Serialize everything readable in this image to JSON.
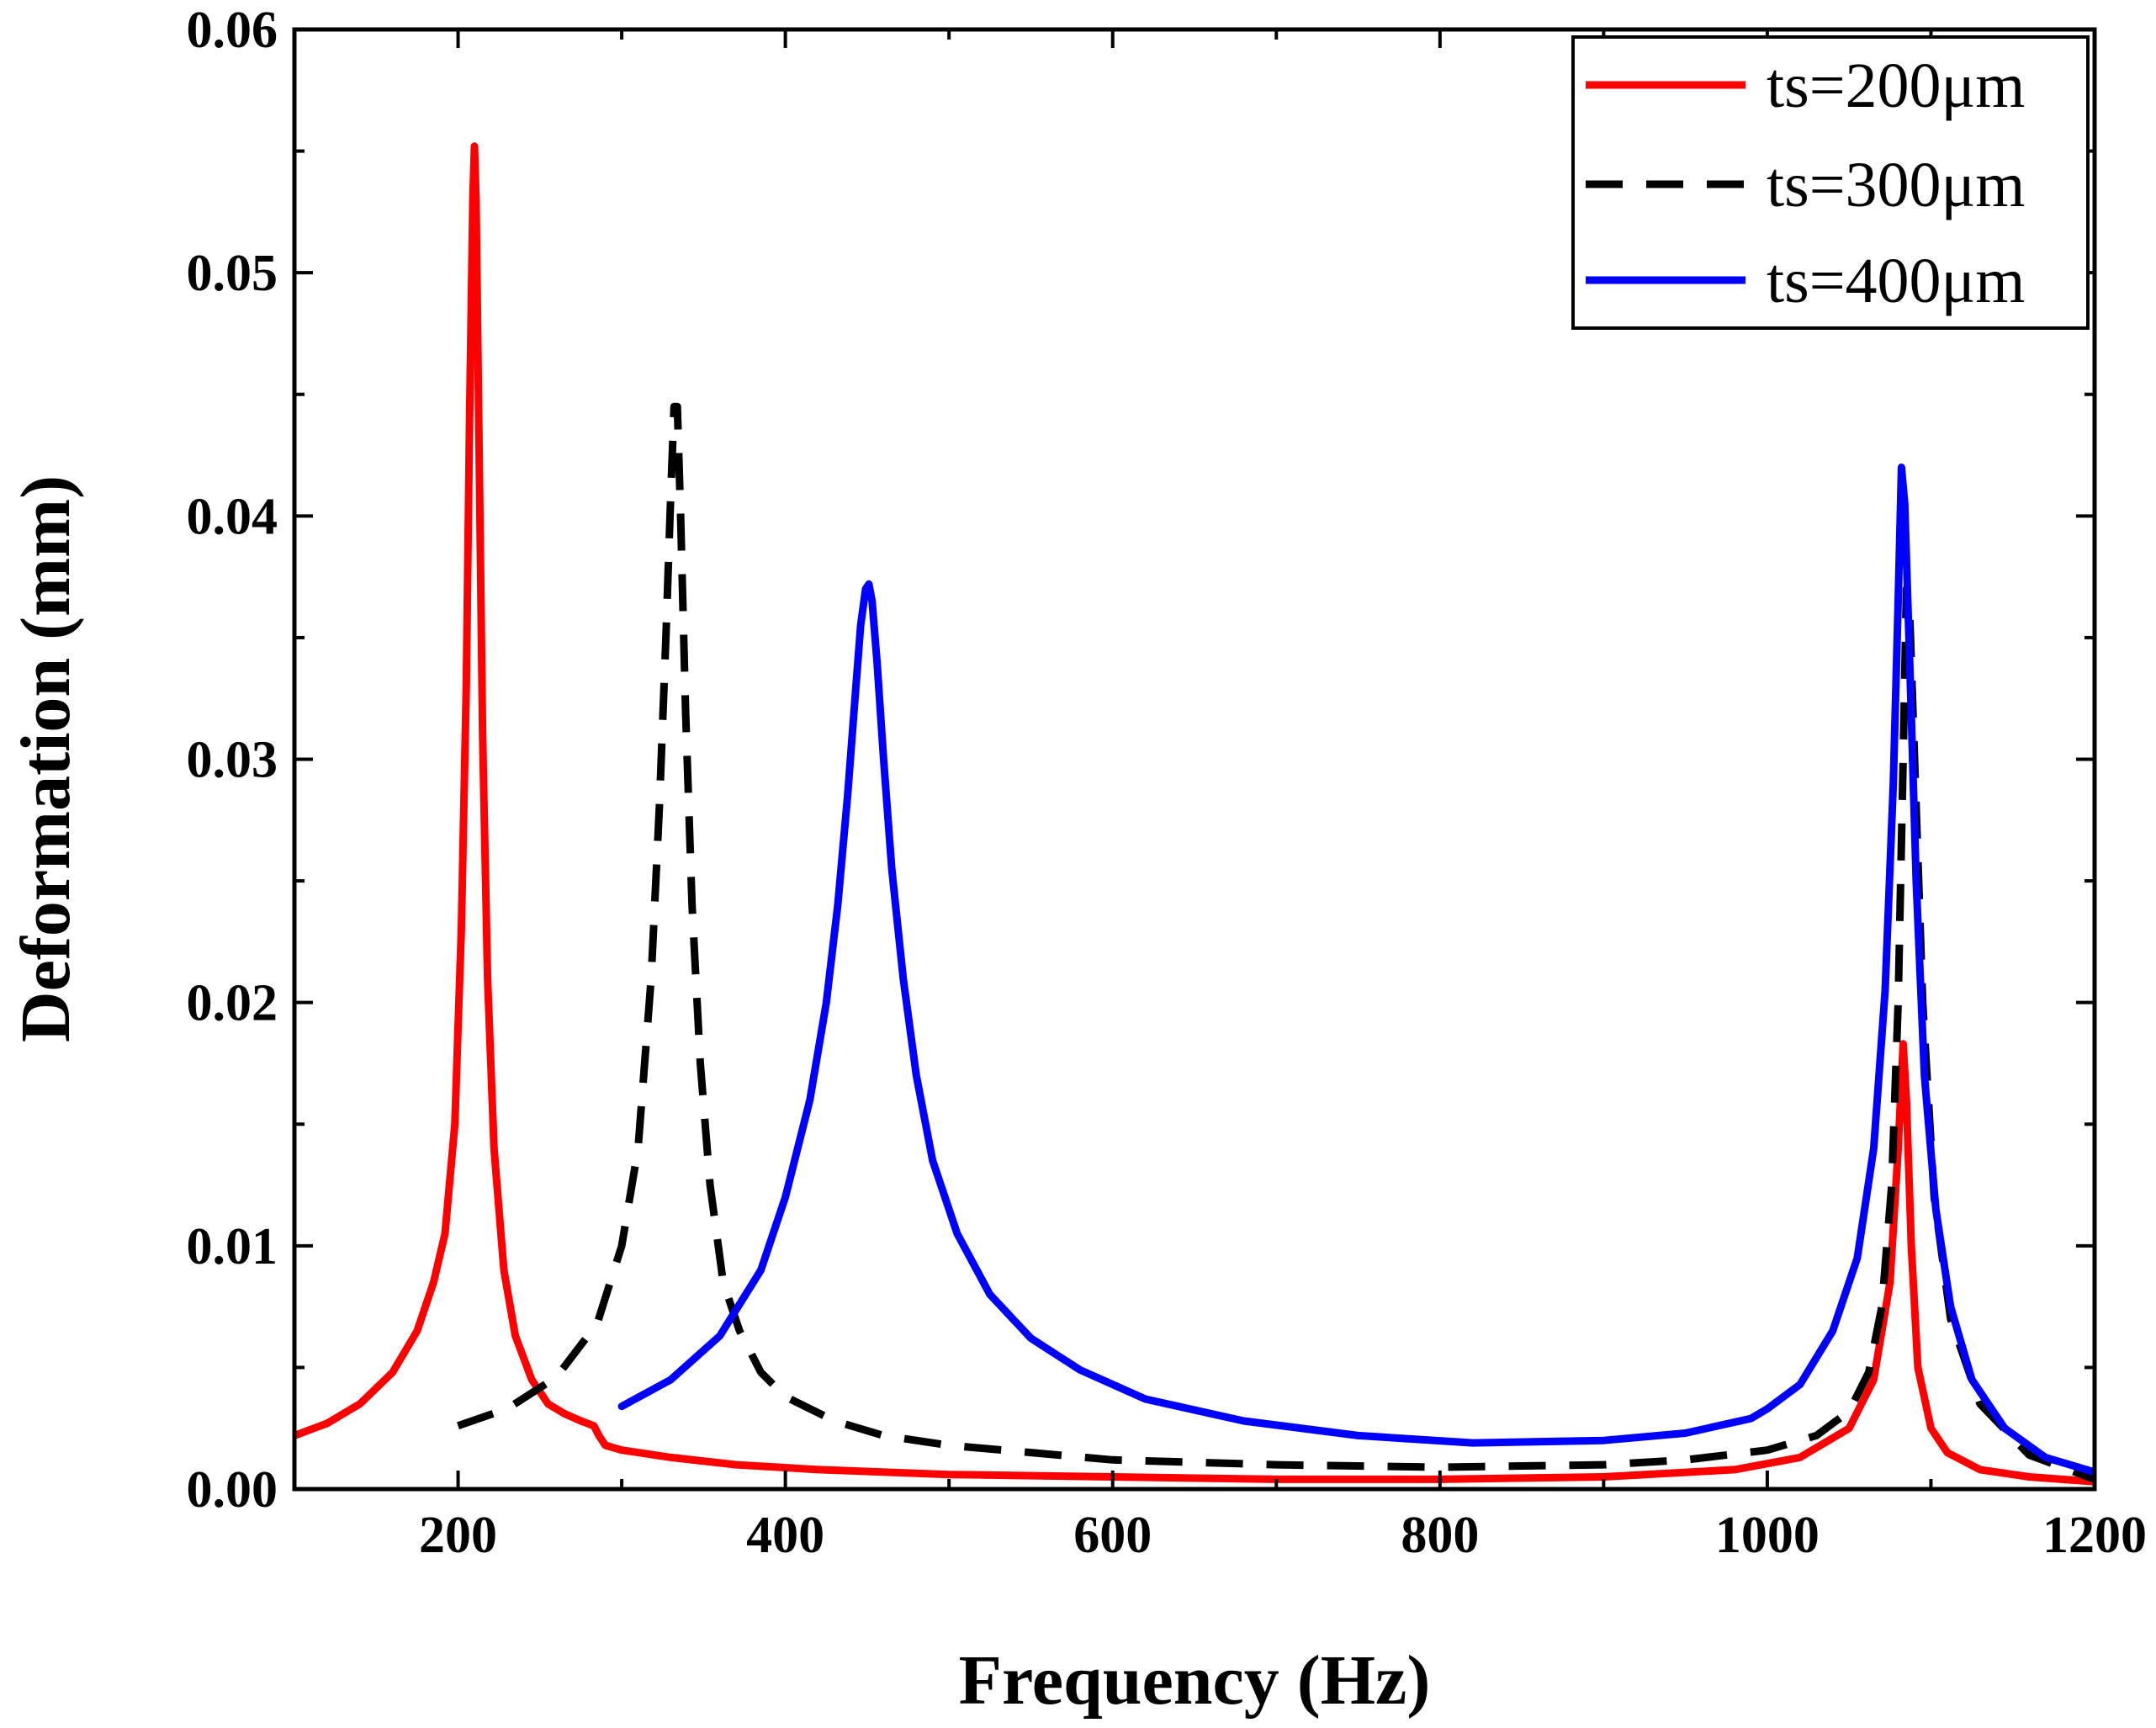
{
  "chart_data": {
    "type": "line",
    "title": "",
    "xlabel": "Frequency (Hz)",
    "ylabel": "Deformation (mm)",
    "xlim": [
      100,
      1200
    ],
    "ylim": [
      0,
      0.06
    ],
    "xticks": [
      200,
      400,
      600,
      800,
      1000,
      1200
    ],
    "xtick_labels": [
      "200",
      "400",
      "600",
      "800",
      "1000",
      "1200"
    ],
    "yticks": [
      0,
      0.01,
      0.02,
      0.03,
      0.04,
      0.05,
      0.06
    ],
    "ytick_labels": [
      "0.00",
      "0.01",
      "0.02",
      "0.03",
      "0.04",
      "0.05",
      "0.06"
    ],
    "grid": false,
    "legend_position": "top-right",
    "series": [
      {
        "name": "ts=200μm",
        "color": "#ff0000",
        "style": "solid",
        "x": [
          100,
          120,
          140,
          160,
          175,
          185,
          192,
          198,
          202,
          205,
          207,
          209,
          210,
          211,
          213,
          215,
          218,
          222,
          228,
          235,
          245,
          255,
          265,
          275,
          283,
          286,
          290,
          300,
          330,
          370,
          420,
          500,
          600,
          700,
          800,
          900,
          980,
          1020,
          1050,
          1065,
          1075,
          1080,
          1083,
          1085,
          1088,
          1092,
          1100,
          1110,
          1130,
          1160,
          1200
        ],
        "y": [
          0.0022,
          0.0027,
          0.0035,
          0.0048,
          0.0065,
          0.0085,
          0.0105,
          0.015,
          0.023,
          0.033,
          0.044,
          0.053,
          0.0552,
          0.053,
          0.042,
          0.031,
          0.021,
          0.014,
          0.009,
          0.0063,
          0.0045,
          0.0035,
          0.0031,
          0.0028,
          0.0026,
          0.0022,
          0.0018,
          0.0016,
          0.0013,
          0.001,
          0.0008,
          0.0006,
          0.0005,
          0.0004,
          0.0004,
          0.0005,
          0.0008,
          0.0013,
          0.0025,
          0.0045,
          0.0085,
          0.014,
          0.0183,
          0.016,
          0.01,
          0.005,
          0.0025,
          0.0015,
          0.0008,
          0.0005,
          0.0003
        ]
      },
      {
        "name": "ts=300μm",
        "color": "#000000",
        "style": "dashed",
        "x": [
          200,
          230,
          260,
          285,
          300,
          310,
          318,
          323,
          327,
          330,
          332,
          334,
          336,
          339,
          343,
          348,
          354,
          362,
          372,
          385,
          400,
          430,
          460,
          500,
          550,
          600,
          700,
          800,
          900,
          950,
          1000,
          1030,
          1050,
          1062,
          1070,
          1076,
          1080,
          1083,
          1085,
          1087,
          1090,
          1095,
          1102,
          1112,
          1130,
          1160,
          1200
        ],
        "y": [
          0.0026,
          0.0033,
          0.0046,
          0.0068,
          0.01,
          0.014,
          0.021,
          0.028,
          0.035,
          0.041,
          0.0445,
          0.0445,
          0.04,
          0.032,
          0.024,
          0.0175,
          0.0125,
          0.0085,
          0.0065,
          0.0048,
          0.0038,
          0.0028,
          0.0022,
          0.0018,
          0.0015,
          0.0012,
          0.001,
          0.0009,
          0.001,
          0.0012,
          0.0016,
          0.0022,
          0.0032,
          0.0048,
          0.0075,
          0.0125,
          0.02,
          0.03,
          0.037,
          0.036,
          0.03,
          0.02,
          0.012,
          0.007,
          0.0035,
          0.0014,
          0.0004
        ]
      },
      {
        "name": "ts=400μm",
        "color": "#0000ff",
        "style": "solid",
        "x": [
          300,
          330,
          360,
          385,
          400,
          415,
          425,
          432,
          438,
          442,
          446,
          449,
          451,
          453,
          456,
          460,
          465,
          472,
          480,
          490,
          505,
          525,
          550,
          580,
          620,
          680,
          750,
          820,
          900,
          950,
          990,
          1000,
          1020,
          1040,
          1055,
          1065,
          1072,
          1077,
          1080,
          1082,
          1084,
          1087,
          1091,
          1096,
          1103,
          1112,
          1125,
          1145,
          1170,
          1200
        ],
        "y": [
          0.0034,
          0.0045,
          0.0063,
          0.009,
          0.012,
          0.016,
          0.02,
          0.024,
          0.0285,
          0.032,
          0.0355,
          0.037,
          0.0372,
          0.0365,
          0.034,
          0.03,
          0.0255,
          0.021,
          0.017,
          0.0135,
          0.0105,
          0.008,
          0.0062,
          0.0049,
          0.0037,
          0.0028,
          0.0022,
          0.0019,
          0.002,
          0.0023,
          0.0029,
          0.0033,
          0.0043,
          0.0065,
          0.0095,
          0.014,
          0.0205,
          0.029,
          0.0365,
          0.042,
          0.0405,
          0.034,
          0.025,
          0.017,
          0.0115,
          0.0075,
          0.0045,
          0.0025,
          0.0013,
          0.0007
        ]
      }
    ]
  }
}
